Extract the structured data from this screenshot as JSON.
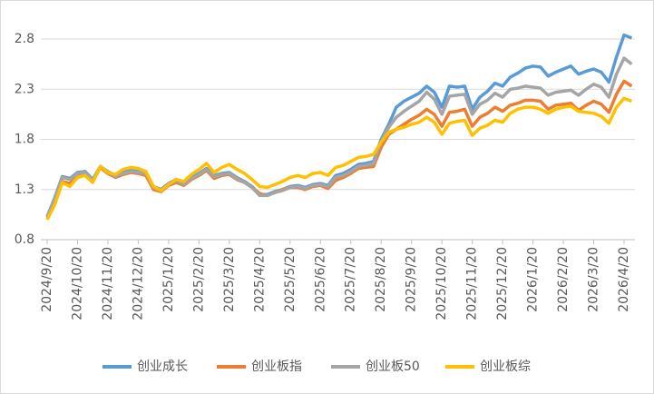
{
  "chart_data": {
    "type": "line",
    "categories": [
      "2024/9/20",
      null,
      null,
      null,
      "2024/10/20",
      null,
      null,
      null,
      "2024/11/20",
      null,
      null,
      null,
      "2024/12/20",
      null,
      null,
      null,
      "2025/1/20",
      null,
      null,
      null,
      "2025/2/20",
      null,
      null,
      null,
      "2025/3/20",
      null,
      null,
      null,
      "2025/4/20",
      null,
      null,
      null,
      "2025/5/20",
      null,
      null,
      null,
      "2025/6/20",
      null,
      null,
      null,
      "2025/7/20",
      null,
      null,
      null,
      "2025/8/20",
      null,
      null,
      null,
      "2025/9/20",
      null,
      null,
      null,
      "2025/10/20",
      null,
      null,
      null,
      "2025/11/20",
      null,
      null,
      null,
      "2025/12/20",
      null,
      null,
      null,
      "2026/1/20",
      null,
      null,
      null,
      "2026/2/20",
      null,
      null,
      null,
      "2026/3/20",
      null,
      null,
      null,
      "2026/4/20",
      null
    ],
    "series": [
      {
        "name": "创业成长",
        "color": "#5b9bd5",
        "values": [
          1.03,
          1.22,
          1.43,
          1.41,
          1.47,
          1.48,
          1.4,
          1.53,
          1.48,
          1.44,
          1.47,
          1.49,
          1.48,
          1.47,
          1.33,
          1.3,
          1.36,
          1.4,
          1.36,
          1.42,
          1.46,
          1.51,
          1.44,
          1.46,
          1.47,
          1.42,
          1.38,
          1.33,
          1.25,
          1.25,
          1.28,
          1.3,
          1.33,
          1.34,
          1.32,
          1.35,
          1.36,
          1.34,
          1.44,
          1.46,
          1.5,
          1.55,
          1.56,
          1.58,
          1.8,
          1.95,
          2.12,
          2.18,
          2.22,
          2.26,
          2.33,
          2.27,
          2.12,
          2.33,
          2.32,
          2.33,
          2.1,
          2.22,
          2.28,
          2.36,
          2.33,
          2.42,
          2.46,
          2.51,
          2.53,
          2.52,
          2.43,
          2.47,
          2.5,
          2.53,
          2.45,
          2.48,
          2.5,
          2.47,
          2.37,
          2.62,
          2.84,
          2.81
        ]
      },
      {
        "name": "创业板指",
        "color": "#ed7d31",
        "values": [
          1.0,
          1.18,
          1.38,
          1.36,
          1.44,
          1.45,
          1.38,
          1.52,
          1.46,
          1.42,
          1.45,
          1.47,
          1.46,
          1.44,
          1.3,
          1.28,
          1.34,
          1.37,
          1.34,
          1.4,
          1.44,
          1.49,
          1.41,
          1.44,
          1.45,
          1.4,
          1.37,
          1.32,
          1.26,
          1.24,
          1.27,
          1.3,
          1.32,
          1.32,
          1.3,
          1.33,
          1.34,
          1.31,
          1.39,
          1.42,
          1.46,
          1.51,
          1.52,
          1.53,
          1.72,
          1.85,
          1.9,
          1.95,
          2.0,
          2.04,
          2.1,
          2.05,
          1.93,
          2.07,
          2.08,
          2.1,
          1.93,
          2.02,
          2.06,
          2.12,
          2.08,
          2.14,
          2.16,
          2.19,
          2.19,
          2.18,
          2.1,
          2.14,
          2.15,
          2.16,
          2.09,
          2.14,
          2.18,
          2.15,
          2.07,
          2.25,
          2.38,
          2.33
        ]
      },
      {
        "name": "创业板50",
        "color": "#a5a5a5",
        "values": [
          1.02,
          1.21,
          1.42,
          1.4,
          1.46,
          1.47,
          1.39,
          1.53,
          1.47,
          1.43,
          1.46,
          1.48,
          1.47,
          1.46,
          1.32,
          1.29,
          1.35,
          1.39,
          1.35,
          1.41,
          1.45,
          1.5,
          1.43,
          1.45,
          1.46,
          1.41,
          1.37,
          1.32,
          1.24,
          1.24,
          1.27,
          1.29,
          1.32,
          1.33,
          1.31,
          1.34,
          1.35,
          1.33,
          1.42,
          1.44,
          1.48,
          1.53,
          1.54,
          1.56,
          1.78,
          1.92,
          2.02,
          2.08,
          2.13,
          2.18,
          2.27,
          2.2,
          2.05,
          2.23,
          2.24,
          2.25,
          2.05,
          2.15,
          2.19,
          2.26,
          2.22,
          2.3,
          2.31,
          2.33,
          2.32,
          2.31,
          2.24,
          2.27,
          2.28,
          2.29,
          2.24,
          2.3,
          2.35,
          2.32,
          2.22,
          2.45,
          2.61,
          2.55
        ]
      },
      {
        "name": "创业板综",
        "color": "#ffc000",
        "values": [
          1.0,
          1.15,
          1.37,
          1.33,
          1.42,
          1.44,
          1.37,
          1.53,
          1.47,
          1.45,
          1.5,
          1.52,
          1.51,
          1.48,
          1.33,
          1.29,
          1.35,
          1.4,
          1.38,
          1.45,
          1.5,
          1.56,
          1.47,
          1.52,
          1.55,
          1.5,
          1.46,
          1.4,
          1.33,
          1.32,
          1.35,
          1.38,
          1.42,
          1.44,
          1.42,
          1.46,
          1.47,
          1.44,
          1.52,
          1.54,
          1.58,
          1.62,
          1.63,
          1.65,
          1.77,
          1.87,
          1.9,
          1.92,
          1.95,
          1.97,
          2.02,
          1.97,
          1.85,
          1.96,
          1.98,
          1.99,
          1.84,
          1.91,
          1.94,
          1.99,
          1.97,
          2.06,
          2.1,
          2.12,
          2.12,
          2.1,
          2.06,
          2.1,
          2.12,
          2.13,
          2.08,
          2.07,
          2.06,
          2.03,
          1.96,
          2.12,
          2.21,
          2.18
        ]
      }
    ],
    "ylim": [
      0.8,
      2.8
    ],
    "yticks": [
      0.8,
      1.3,
      1.8,
      2.3,
      2.8
    ],
    "grid": true,
    "legend": "bottom"
  }
}
